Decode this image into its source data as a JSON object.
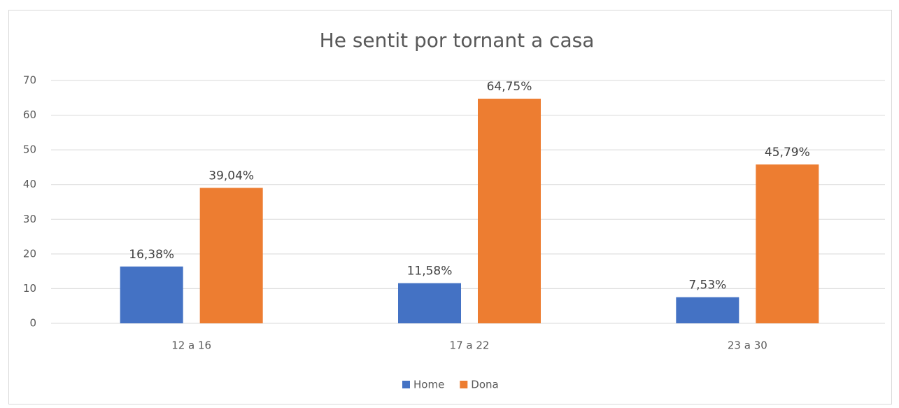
{
  "chart_data": {
    "type": "bar",
    "title": "He sentit por tornant a casa",
    "categories": [
      "12 a 16",
      "17 a 22",
      "23 a 30"
    ],
    "series": [
      {
        "name": "Home",
        "color": "#4472c4",
        "values": [
          16.38,
          11.58,
          7.53
        ],
        "value_labels": [
          "16,38%",
          "11,58%",
          "7,53%"
        ]
      },
      {
        "name": "Dona",
        "color": "#ed7d31",
        "values": [
          39.04,
          64.75,
          45.79
        ],
        "value_labels": [
          "39,04%",
          "64,75%",
          "45,79%"
        ]
      }
    ],
    "ylim": [
      0,
      70
    ],
    "yticks": [
      0,
      10,
      20,
      30,
      40,
      50,
      60,
      70
    ],
    "grid": true,
    "legend": "bottom"
  }
}
